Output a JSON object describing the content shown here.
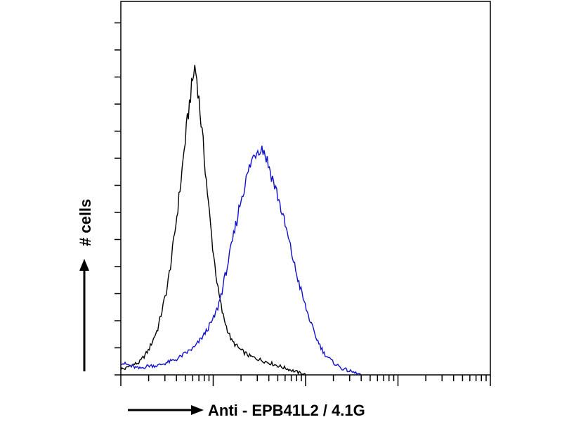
{
  "chart_data": {
    "type": "histogram",
    "title": "",
    "xlabel": "Anti - EPB41L2 / 4.1G",
    "ylabel": "# cells",
    "x_scale": "log",
    "x_decades": 4,
    "grid": false,
    "legend": "none",
    "series": [
      {
        "color": "#000000",
        "points": [
          [
            0.0,
            2
          ],
          [
            0.05,
            2
          ],
          [
            0.1,
            3
          ],
          [
            0.2,
            4
          ],
          [
            0.3,
            8
          ],
          [
            0.4,
            15
          ],
          [
            0.5,
            28
          ],
          [
            0.55,
            38
          ],
          [
            0.6,
            50
          ],
          [
            0.65,
            63
          ],
          [
            0.7,
            77
          ],
          [
            0.75,
            90
          ],
          [
            0.78,
            96
          ],
          [
            0.8,
            100
          ],
          [
            0.82,
            97
          ],
          [
            0.85,
            88
          ],
          [
            0.9,
            72
          ],
          [
            0.95,
            55
          ],
          [
            1.0,
            40
          ],
          [
            1.05,
            28
          ],
          [
            1.1,
            20
          ],
          [
            1.15,
            15
          ],
          [
            1.2,
            11
          ],
          [
            1.3,
            8
          ],
          [
            1.4,
            6
          ],
          [
            1.5,
            5
          ],
          [
            1.6,
            4
          ],
          [
            1.7,
            3
          ],
          [
            1.8,
            2
          ],
          [
            1.9,
            1
          ],
          [
            2.0,
            0
          ]
        ]
      },
      {
        "color": "#1010cc",
        "points": [
          [
            0.0,
            4
          ],
          [
            0.1,
            3
          ],
          [
            0.2,
            2
          ],
          [
            0.3,
            3
          ],
          [
            0.4,
            3
          ],
          [
            0.5,
            4
          ],
          [
            0.6,
            5
          ],
          [
            0.7,
            7
          ],
          [
            0.8,
            9
          ],
          [
            0.9,
            13
          ],
          [
            1.0,
            18
          ],
          [
            1.05,
            22
          ],
          [
            1.1,
            28
          ],
          [
            1.2,
            42
          ],
          [
            1.3,
            57
          ],
          [
            1.4,
            68
          ],
          [
            1.45,
            72
          ],
          [
            1.5,
            74
          ],
          [
            1.55,
            73
          ],
          [
            1.6,
            68
          ],
          [
            1.7,
            58
          ],
          [
            1.8,
            46
          ],
          [
            1.9,
            33
          ],
          [
            2.0,
            22
          ],
          [
            2.1,
            13
          ],
          [
            2.2,
            7
          ],
          [
            2.3,
            4
          ],
          [
            2.4,
            2
          ],
          [
            2.5,
            1
          ],
          [
            2.6,
            0
          ]
        ]
      }
    ]
  }
}
